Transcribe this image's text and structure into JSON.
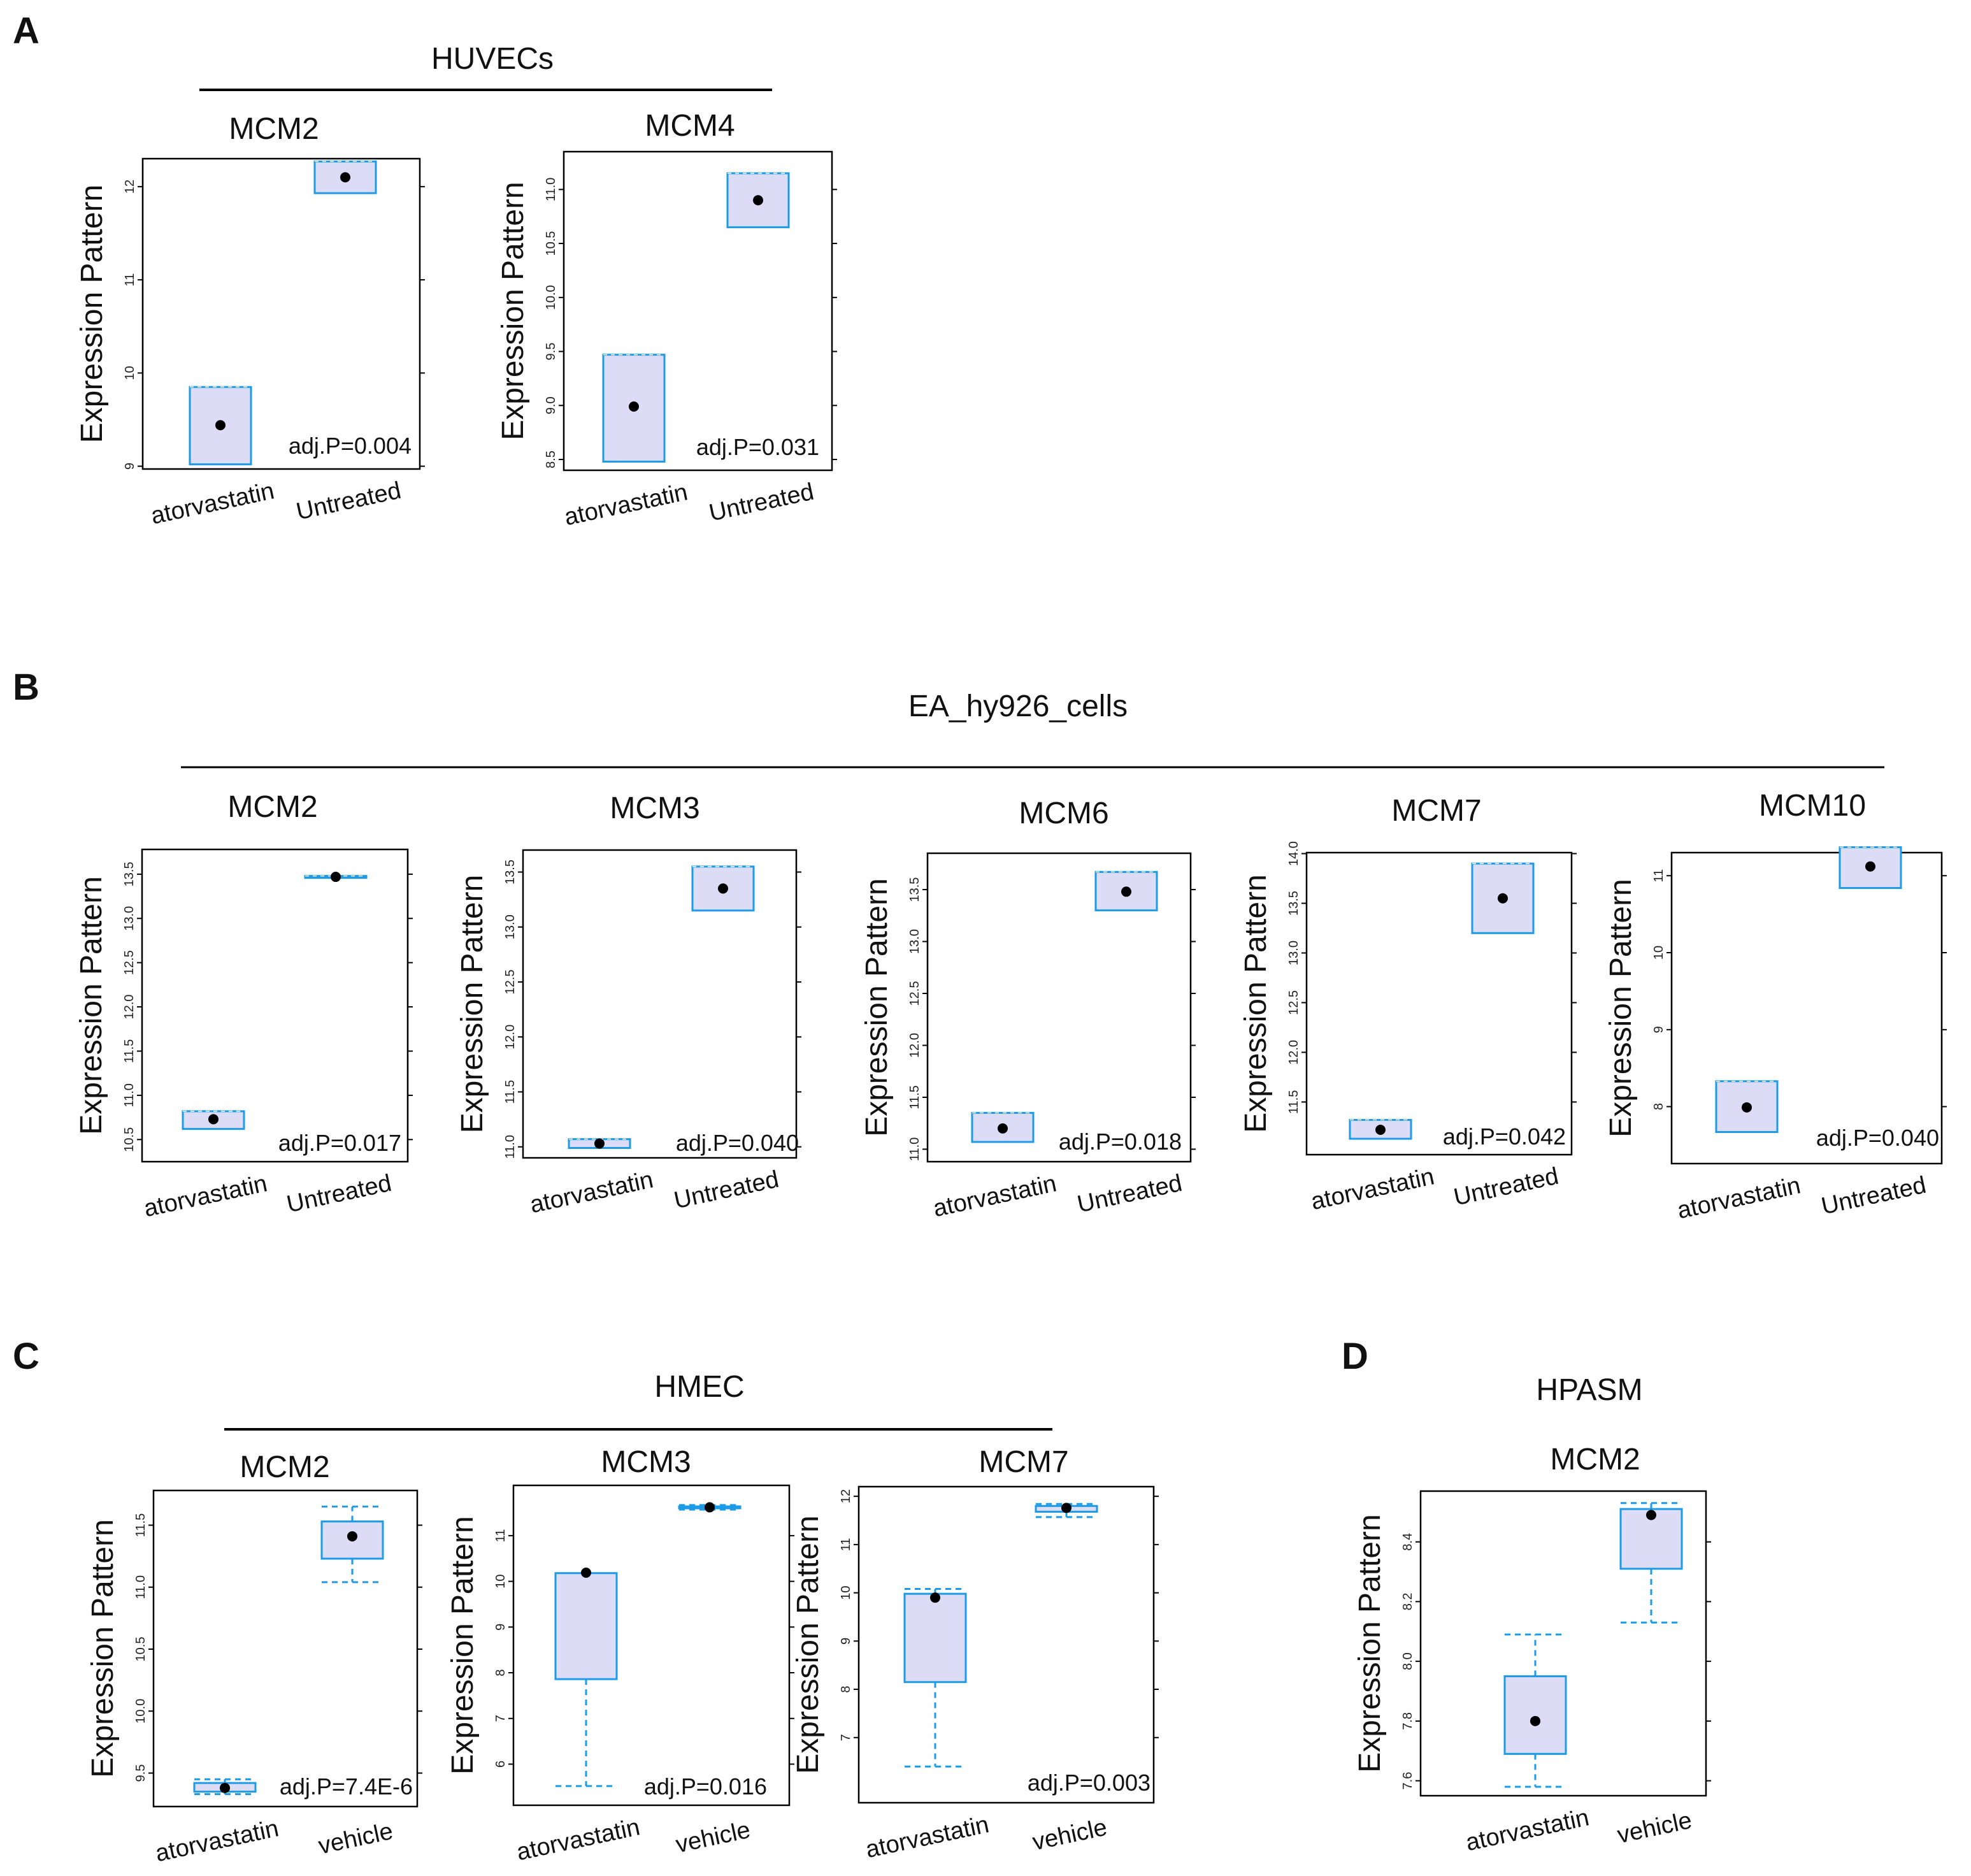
{
  "figure": {
    "layout": "4 panels (A-D) of per-gene box plots"
  },
  "colors": {
    "box_fill": "#dcdcf6",
    "box_stroke": "#1e9be6",
    "dot": "#000000",
    "frame": "#000000"
  },
  "panels": [
    {
      "label": "A",
      "group_title": "HUVECs"
    },
    {
      "label": "B",
      "group_title": "EA_hy926_cells"
    },
    {
      "label": "C",
      "group_title": "HMEC"
    },
    {
      "label": "D",
      "group_title": "HPASM"
    }
  ],
  "chart_data": [
    {
      "type": "box",
      "panel": "A",
      "title": "MCM2",
      "ylabel": "Expression Pattern",
      "yticks": [
        9,
        10,
        11,
        12
      ],
      "tick_labels": [
        "9",
        "10",
        "11",
        "12"
      ],
      "ylim": [
        8.97,
        12.3
      ],
      "categories": [
        "atorvastatin",
        "Untreated"
      ],
      "boxes": [
        {
          "whisker_low": 9.02,
          "q1": 9.02,
          "q3": 9.85,
          "whisker_high": 9.85,
          "point": 9.44
        },
        {
          "whisker_low": 11.93,
          "q1": 11.93,
          "q3": 12.27,
          "whisker_high": 12.27,
          "point": 12.1
        }
      ],
      "pvalue": "adj.P=0.004"
    },
    {
      "type": "box",
      "panel": "A",
      "title": "MCM4",
      "ylabel": "Expression Pattern",
      "yticks": [
        8.5,
        9.0,
        9.5,
        10.0,
        10.5,
        11.0
      ],
      "tick_labels": [
        "8.5",
        "9.0",
        "9.5",
        "10.0",
        "10.5",
        "11.0"
      ],
      "ylim": [
        8.4,
        11.35
      ],
      "categories": [
        "atorvastatin",
        "Untreated"
      ],
      "boxes": [
        {
          "whisker_low": 8.48,
          "q1": 8.48,
          "q3": 9.47,
          "whisker_high": 9.47,
          "point": 8.99
        },
        {
          "whisker_low": 10.65,
          "q1": 10.65,
          "q3": 11.15,
          "whisker_high": 11.15,
          "point": 10.9
        }
      ],
      "pvalue": "adj.P=0.031"
    },
    {
      "type": "box",
      "panel": "B",
      "title": "MCM2",
      "ylabel": "Expression Pattern",
      "yticks": [
        10.5,
        11.0,
        11.5,
        12.0,
        12.5,
        13.0,
        13.5
      ],
      "tick_labels": [
        "10.5",
        "11.0",
        "11.5",
        "12.0",
        "12.5",
        "13.0",
        "13.5"
      ],
      "ylim": [
        10.25,
        13.78
      ],
      "categories": [
        "atorvastatin",
        "Untreated"
      ],
      "boxes": [
        {
          "whisker_low": 10.62,
          "q1": 10.62,
          "q3": 10.82,
          "whisker_high": 10.82,
          "point": 10.73
        },
        {
          "whisker_low": 13.46,
          "q1": 13.46,
          "q3": 13.48,
          "whisker_high": 13.48,
          "point": 13.47
        }
      ],
      "pvalue": "adj.P=0.017"
    },
    {
      "type": "box",
      "panel": "B",
      "title": "MCM3",
      "ylabel": "Expression Pattern",
      "yticks": [
        11.0,
        11.5,
        12.0,
        12.5,
        13.0,
        13.5
      ],
      "tick_labels": [
        "11.0",
        "11.5",
        "12.0",
        "12.5",
        "13.0",
        "13.5"
      ],
      "ylim": [
        10.9,
        13.7
      ],
      "categories": [
        "atorvastatin",
        "Untreated"
      ],
      "boxes": [
        {
          "whisker_low": 10.99,
          "q1": 10.99,
          "q3": 11.07,
          "whisker_high": 11.07,
          "point": 11.03
        },
        {
          "whisker_low": 13.15,
          "q1": 13.15,
          "q3": 13.55,
          "whisker_high": 13.55,
          "point": 13.35
        }
      ],
      "pvalue": "adj.P=0.040"
    },
    {
      "type": "box",
      "panel": "B",
      "title": "MCM6",
      "ylabel": "Expression Pattern",
      "yticks": [
        11.0,
        11.5,
        12.0,
        12.5,
        13.0,
        13.5
      ],
      "tick_labels": [
        "11.0",
        "11.5",
        "12.0",
        "12.5",
        "13.0",
        "13.5"
      ],
      "ylim": [
        10.88,
        13.85
      ],
      "categories": [
        "atorvastatin",
        "Untreated"
      ],
      "boxes": [
        {
          "whisker_low": 11.07,
          "q1": 11.07,
          "q3": 11.35,
          "whisker_high": 11.35,
          "point": 11.2
        },
        {
          "whisker_low": 13.3,
          "q1": 13.3,
          "q3": 13.67,
          "whisker_high": 13.67,
          "point": 13.48
        }
      ],
      "pvalue": "adj.P=0.018"
    },
    {
      "type": "box",
      "panel": "B",
      "title": "MCM7",
      "ylabel": "Expression Pattern",
      "yticks": [
        11.5,
        12.0,
        12.5,
        13.0,
        13.5,
        14.0
      ],
      "tick_labels": [
        "11.5",
        "12.0",
        "12.5",
        "13.0",
        "13.5",
        "14.0"
      ],
      "ylim": [
        10.97,
        14.01
      ],
      "categories": [
        "atorvastatin",
        "Untreated"
      ],
      "boxes": [
        {
          "whisker_low": 11.13,
          "q1": 11.13,
          "q3": 11.32,
          "whisker_high": 11.32,
          "point": 11.22
        },
        {
          "whisker_low": 13.2,
          "q1": 13.2,
          "q3": 13.9,
          "whisker_high": 13.9,
          "point": 13.55
        }
      ],
      "pvalue": "adj.P=0.042"
    },
    {
      "type": "box",
      "panel": "B",
      "title": "MCM10",
      "ylabel": "Expression Pattern",
      "yticks": [
        8,
        9,
        10,
        11
      ],
      "tick_labels": [
        "8",
        "9",
        "10",
        "11"
      ],
      "ylim": [
        7.26,
        11.3
      ],
      "categories": [
        "atorvastatin",
        "Untreated"
      ],
      "boxes": [
        {
          "whisker_low": 7.67,
          "q1": 7.67,
          "q3": 8.33,
          "whisker_high": 8.33,
          "point": 7.99
        },
        {
          "whisker_low": 10.84,
          "q1": 10.84,
          "q3": 11.37,
          "whisker_high": 11.37,
          "point": 11.12
        }
      ],
      "pvalue": "adj.P=0.040"
    },
    {
      "type": "box",
      "panel": "C",
      "title": "MCM2",
      "ylabel": "Expression Pattern",
      "yticks": [
        9.5,
        10.0,
        10.5,
        11.0,
        11.5
      ],
      "tick_labels": [
        "9.5",
        "10.0",
        "10.5",
        "11.0",
        "11.5"
      ],
      "ylim": [
        9.23,
        11.78
      ],
      "categories": [
        "atorvastatin",
        "vehicle"
      ],
      "boxes": [
        {
          "whisker_low": 9.33,
          "q1": 9.35,
          "q3": 9.42,
          "whisker_high": 9.45,
          "point": 9.38
        },
        {
          "whisker_low": 11.04,
          "q1": 11.23,
          "q3": 11.53,
          "whisker_high": 11.65,
          "point": 11.41
        }
      ],
      "pvalue": "adj.P=7.4E-6"
    },
    {
      "type": "box",
      "panel": "C",
      "title": "MCM3",
      "ylabel": "Expression Pattern",
      "yticks": [
        6,
        7,
        8,
        9,
        10,
        11
      ],
      "tick_labels": [
        "6",
        "7",
        "8",
        "9",
        "10",
        "11"
      ],
      "ylim": [
        5.1,
        12.1
      ],
      "categories": [
        "atorvastatin",
        "vehicle"
      ],
      "boxes": [
        {
          "whisker_low": 5.52,
          "q1": 7.86,
          "q3": 10.18,
          "whisker_high": 10.18,
          "point": 10.19
        },
        {
          "whisker_low": 11.57,
          "q1": 11.6,
          "q3": 11.64,
          "whisker_high": 11.67,
          "point": 11.62
        }
      ],
      "pvalue": "adj.P=0.016"
    },
    {
      "type": "box",
      "panel": "C",
      "title": "MCM7",
      "ylabel": "Expression Pattern",
      "yticks": [
        7,
        8,
        9,
        10,
        11,
        12
      ],
      "tick_labels": [
        "7",
        "8",
        "9",
        "10",
        "11",
        "12"
      ],
      "ylim": [
        5.65,
        12.2
      ],
      "categories": [
        "atorvastatin",
        "vehicle"
      ],
      "boxes": [
        {
          "whisker_low": 6.4,
          "q1": 8.15,
          "q3": 9.98,
          "whisker_high": 10.08,
          "point": 9.9
        },
        {
          "whisker_low": 11.57,
          "q1": 11.68,
          "q3": 11.8,
          "whisker_high": 11.84,
          "point": 11.76
        }
      ],
      "pvalue": "adj.P=0.003"
    },
    {
      "type": "box",
      "panel": "D",
      "title": "MCM2",
      "ylabel": "Expression Pattern",
      "yticks": [
        7.6,
        7.8,
        8.0,
        8.2,
        8.4
      ],
      "tick_labels": [
        "7.6",
        "7.8",
        "8.0",
        "8.2",
        "8.4"
      ],
      "ylim": [
        7.55,
        8.57
      ],
      "categories": [
        "atorvastatin",
        "vehicle"
      ],
      "boxes": [
        {
          "whisker_low": 7.58,
          "q1": 7.69,
          "q3": 7.95,
          "whisker_high": 8.09,
          "point": 7.8
        },
        {
          "whisker_low": 8.13,
          "q1": 8.31,
          "q3": 8.51,
          "whisker_high": 8.53,
          "point": 8.49
        }
      ],
      "pvalue": ""
    }
  ]
}
